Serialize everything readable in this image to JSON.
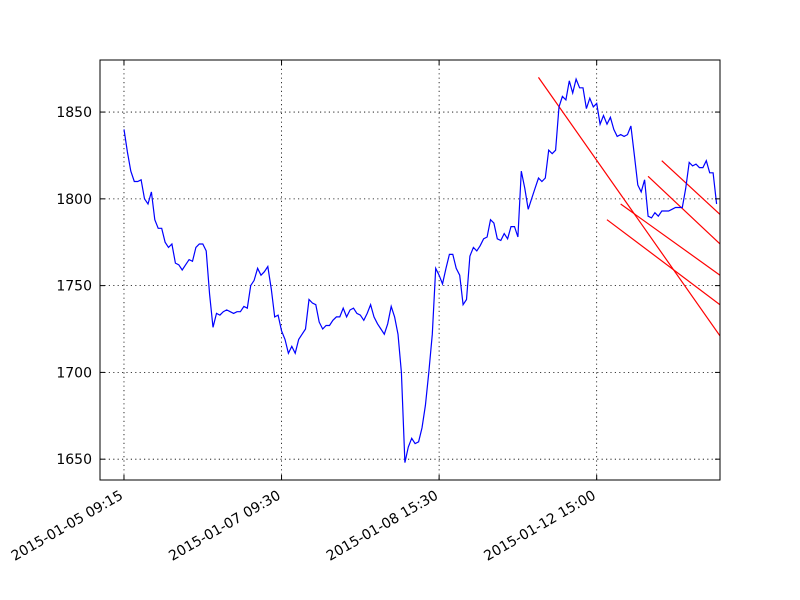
{
  "chart_data": {
    "type": "line",
    "title": "",
    "xlabel": "",
    "ylabel": "",
    "ylim": [
      1638,
      1880
    ],
    "xlim": [
      -7,
      174
    ],
    "x_unit": "trading-period index (evenly spaced samples)",
    "x_ticks": [
      {
        "x": 0,
        "label": "2015-01-05 09:15"
      },
      {
        "x": 46,
        "label": "2015-01-07 09:30"
      },
      {
        "x": 92,
        "label": "2015-01-08 15:30"
      },
      {
        "x": 138,
        "label": "2015-01-12 15:00"
      }
    ],
    "y_ticks": [
      1650,
      1700,
      1750,
      1800,
      1850
    ],
    "grid": true,
    "series": [
      {
        "color": "#0000ff",
        "values": [
          1840,
          1827,
          1816,
          1810,
          1810,
          1811,
          1800,
          1797,
          1804,
          1788,
          1783,
          1783,
          1775,
          1772,
          1774,
          1763,
          1762,
          1759,
          1762,
          1765,
          1764,
          1772,
          1774,
          1774,
          1770,
          1745,
          1726,
          1734,
          1733,
          1735,
          1736,
          1735,
          1734,
          1735,
          1735,
          1738,
          1737,
          1750,
          1753,
          1760,
          1756,
          1758,
          1761,
          1748,
          1732,
          1733,
          1724,
          1719,
          1711,
          1715,
          1711,
          1719,
          1722,
          1725,
          1742,
          1740,
          1739,
          1729,
          1725,
          1727,
          1727,
          1730,
          1732,
          1732,
          1737,
          1732,
          1736,
          1737,
          1734,
          1733,
          1730,
          1734,
          1739,
          1732,
          1728,
          1725,
          1722,
          1728,
          1738,
          1732,
          1722,
          1700,
          1648,
          1657,
          1662,
          1659,
          1660,
          1668,
          1681,
          1700,
          1722,
          1760,
          1756,
          1751,
          1760,
          1768,
          1768,
          1760,
          1756,
          1739,
          1742,
          1767,
          1772,
          1770,
          1773,
          1777,
          1778,
          1788,
          1786,
          1777,
          1776,
          1780,
          1777,
          1784,
          1784,
          1778,
          1816,
          1806,
          1794,
          1800,
          1806,
          1812,
          1810,
          1812,
          1828,
          1826,
          1828,
          1853,
          1859,
          1857,
          1868,
          1861,
          1869,
          1864,
          1864,
          1852,
          1858,
          1853,
          1855,
          1843,
          1848,
          1843,
          1847,
          1840,
          1836,
          1837,
          1836,
          1837,
          1842,
          1825,
          1808,
          1804,
          1811,
          1790,
          1789,
          1792,
          1790,
          1793,
          1793,
          1793,
          1794,
          1795,
          1795,
          1795,
          1806,
          1821,
          1819,
          1820,
          1818,
          1818,
          1822,
          1815,
          1815,
          1797
        ]
      }
    ],
    "trend_lines": {
      "color": "#ff0000",
      "lines": [
        {
          "x1": 121,
          "y1": 1870,
          "x2": 174,
          "y2": 1721
        },
        {
          "x1": 141,
          "y1": 1788,
          "x2": 174,
          "y2": 1739
        },
        {
          "x1": 145,
          "y1": 1797,
          "x2": 174,
          "y2": 1756
        },
        {
          "x1": 153,
          "y1": 1813,
          "x2": 174,
          "y2": 1774
        },
        {
          "x1": 157,
          "y1": 1822,
          "x2": 174,
          "y2": 1791
        }
      ]
    }
  }
}
